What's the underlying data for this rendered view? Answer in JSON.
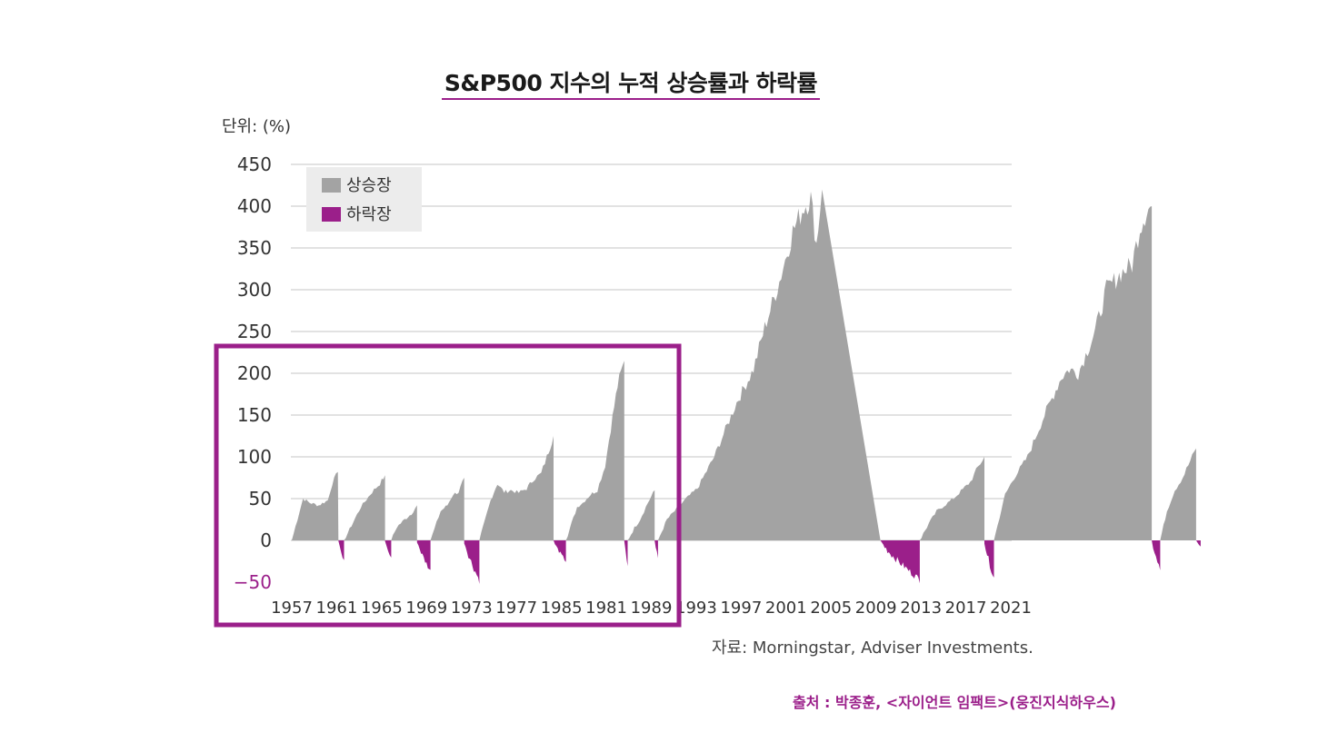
{
  "title": "S&P500 지수의 누적 상승률과 하락률",
  "unit_label": "단위: (%)",
  "source_text": "자료: Morningstar, Adviser Investments.",
  "credit_text": "출처 : 박종훈, <자이언트 임팩트>(웅진지식하우스)",
  "colors": {
    "bull": "#a3a3a3",
    "bear": "#9b1f8a",
    "highlight": "#9b1f8a",
    "grid": "#d0d0d0",
    "negative_tick": "#9b1f8a"
  },
  "chart_data": {
    "type": "area",
    "title": "S&P500 지수의 누적 상승률과 하락률",
    "ylabel": "단위: (%)",
    "ylim": [
      -50,
      450
    ],
    "yticks": [
      450,
      400,
      350,
      300,
      250,
      200,
      150,
      100,
      50,
      0,
      -50
    ],
    "xtick_labels": [
      "1957",
      "1961",
      "1965",
      "1969",
      "1973",
      "1977",
      "1985",
      "1981",
      "1989",
      "1993",
      "1997",
      "2001",
      "2005",
      "2009",
      "2013",
      "2017",
      "2021"
    ],
    "grid": true,
    "legend_position": "top-left",
    "series": [
      {
        "name": "상승장",
        "episodes": [
          {
            "start": 0.0,
            "end": 4.15,
            "points": [
              [
                0,
                0
              ],
              [
                1.0,
                50
              ],
              [
                1.6,
                45
              ],
              [
                2.4,
                42
              ],
              [
                3.2,
                48
              ],
              [
                3.6,
                68
              ],
              [
                4.1,
                82
              ]
            ]
          },
          {
            "start": 4.65,
            "end": 8.3,
            "points": [
              [
                0,
                0
              ],
              [
                1.5,
                40
              ],
              [
                2.5,
                58
              ],
              [
                3.2,
                68
              ],
              [
                3.65,
                78
              ]
            ]
          },
          {
            "start": 8.85,
            "end": 11.15,
            "points": [
              [
                0,
                0
              ],
              [
                0.5,
                16
              ],
              [
                1.2,
                25
              ],
              [
                1.8,
                32
              ],
              [
                2.3,
                42
              ]
            ]
          },
          {
            "start": 12.35,
            "end": 15.35,
            "points": [
              [
                0,
                0
              ],
              [
                0.9,
                35
              ],
              [
                1.5,
                42
              ],
              [
                2.0,
                55
              ],
              [
                2.5,
                58
              ],
              [
                3.0,
                75
              ]
            ]
          },
          {
            "start": 16.7,
            "end": 23.3,
            "points": [
              [
                0,
                0
              ],
              [
                1.0,
                48
              ],
              [
                1.6,
                68
              ],
              [
                2.2,
                58
              ],
              [
                2.8,
                60
              ],
              [
                3.5,
                57
              ],
              [
                4.2,
                62
              ],
              [
                4.8,
                73
              ],
              [
                5.5,
                80
              ],
              [
                6.0,
                100
              ],
              [
                6.6,
                125
              ]
            ]
          },
          {
            "start": 24.4,
            "end": 29.6,
            "points": [
              [
                0,
                0
              ],
              [
                1.0,
                40
              ],
              [
                1.5,
                45
              ],
              [
                2.2,
                55
              ],
              [
                2.8,
                60
              ],
              [
                3.5,
                90
              ],
              [
                4.0,
                135
              ],
              [
                4.6,
                185
              ],
              [
                5.2,
                215
              ]
            ]
          },
          {
            "start": 29.9,
            "end": 32.3,
            "points": [
              [
                0,
                0
              ],
              [
                0.6,
                15
              ],
              [
                1.1,
                25
              ],
              [
                1.8,
                45
              ],
              [
                2.4,
                60
              ]
            ]
          },
          {
            "start": 32.6,
            "end": 52.4,
            "points": [
              [
                0,
                0
              ],
              [
                0.8,
                25
              ],
              [
                2.5,
                50
              ],
              [
                3.5,
                62
              ],
              [
                5.0,
                100
              ],
              [
                7.0,
                165
              ],
              [
                8.5,
                205
              ],
              [
                9.5,
                255
              ],
              [
                10.8,
                310
              ],
              [
                12.0,
                370
              ],
              [
                13.0,
                400
              ],
              [
                13.6,
                410
              ],
              [
                14.1,
                355
              ],
              [
                14.6,
                420
              ]
            ]
          },
          {
            "start": 55.9,
            "end": 61.65,
            "points": [
              [
                0,
                0
              ],
              [
                0.8,
                20
              ],
              [
                1.5,
                35
              ],
              [
                3.0,
                50
              ],
              [
                4.5,
                70
              ],
              [
                5.2,
                88
              ],
              [
                5.75,
                100
              ]
            ]
          },
          {
            "start": 62.5,
            "end": 76.55,
            "points": [
              [
                0,
                0
              ],
              [
                1.0,
                55
              ],
              [
                1.8,
                75
              ],
              [
                3.0,
                100
              ],
              [
                4.5,
                150
              ],
              [
                6.0,
                195
              ],
              [
                6.7,
                205
              ],
              [
                7.5,
                200
              ],
              [
                9.0,
                250
              ],
              [
                10.0,
                300
              ],
              [
                10.7,
                310
              ],
              [
                11.3,
                320
              ],
              [
                12.3,
                330
              ],
              [
                13.0,
                375
              ],
              [
                13.6,
                395
              ],
              [
                14.05,
                400
              ]
            ]
          },
          {
            "start": 77.3,
            "end": 80.5,
            "points": [
              [
                0,
                0
              ],
              [
                0.6,
                35
              ],
              [
                1.3,
                60
              ],
              [
                2.0,
                75
              ],
              [
                2.5,
                90
              ],
              [
                3.2,
                110
              ]
            ]
          }
        ]
      },
      {
        "name": "하락장",
        "episodes": [
          {
            "start": 4.15,
            "end": 4.65,
            "min": -25
          },
          {
            "start": 8.3,
            "end": 8.85,
            "min": -22
          },
          {
            "start": 11.15,
            "end": 12.35,
            "min": -37
          },
          {
            "start": 15.35,
            "end": 16.7,
            "min": -48
          },
          {
            "start": 23.3,
            "end": 24.4,
            "min": -25
          },
          {
            "start": 29.6,
            "end": 29.9,
            "min": -33
          },
          {
            "start": 32.3,
            "end": 32.6,
            "min": -20
          },
          {
            "start": 52.4,
            "end": 55.9,
            "min": -47
          },
          {
            "start": 61.65,
            "end": 62.5,
            "min": -45
          },
          {
            "start": 76.55,
            "end": 77.3,
            "min": -33
          },
          {
            "start": 80.5,
            "end": 80.9,
            "min": -8
          }
        ]
      }
    ],
    "x_span_years": 64
  }
}
